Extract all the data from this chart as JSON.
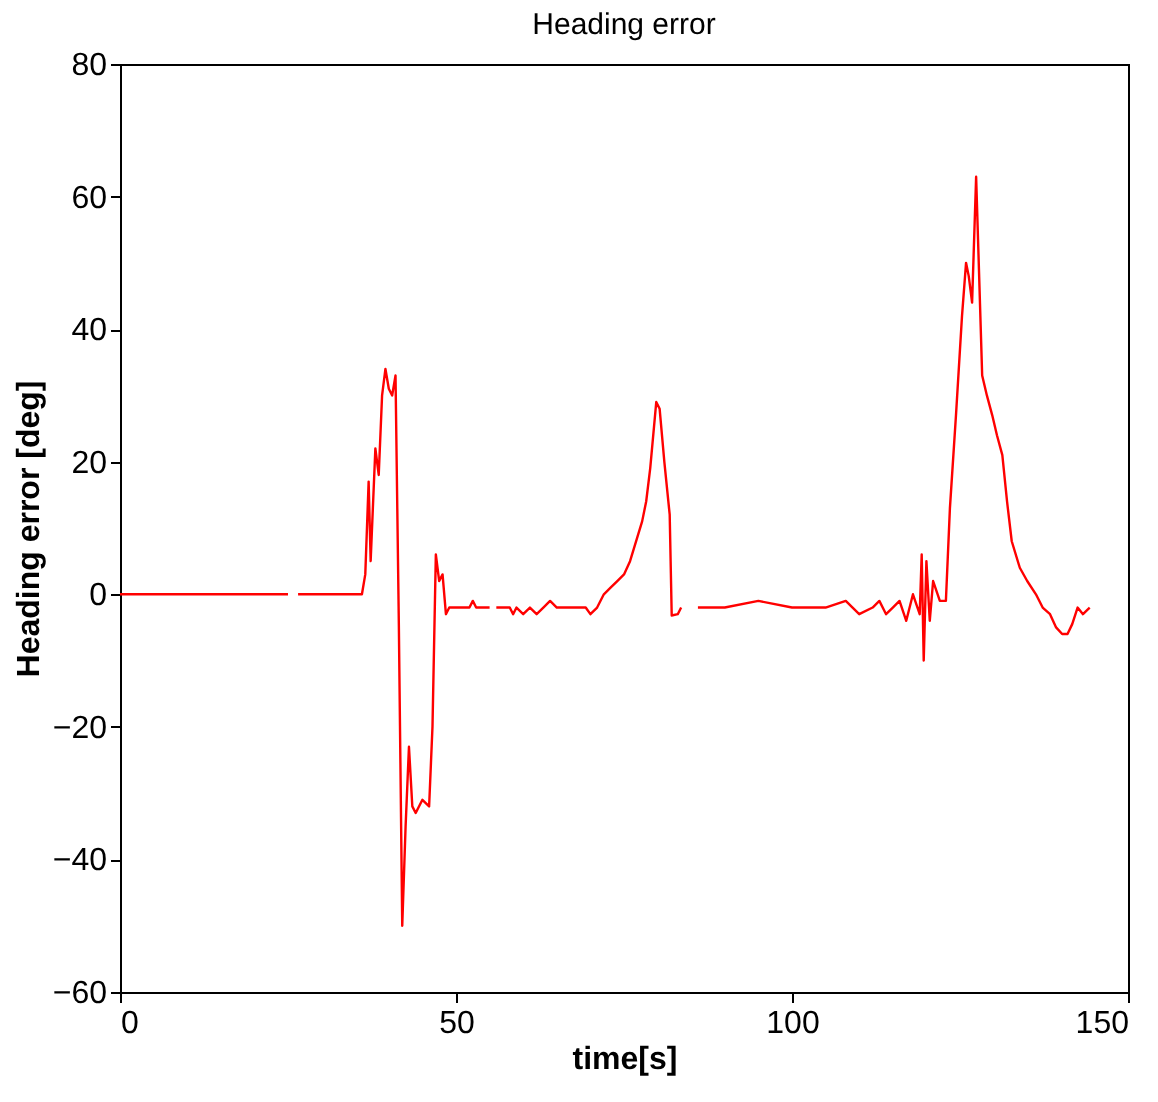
{
  "chart_data": {
    "type": "line",
    "title": "Heading error",
    "xlabel": "time[s]",
    "ylabel": "Heading error [deg]",
    "xlim": [
      0,
      150
    ],
    "xticks": [
      0,
      50,
      100,
      150
    ],
    "ylim": [
      -60,
      80
    ],
    "yticks": [
      -60,
      -40,
      -20,
      0,
      20,
      40,
      60,
      80
    ],
    "grid": false,
    "line_style": "solid",
    "series": [
      {
        "color": "#ff0000",
        "x": [
          0,
          25,
          25.5,
          26.5,
          36,
          36.5,
          37,
          37.3,
          38,
          38.5,
          39,
          39.5,
          40,
          40.5,
          41,
          41.5,
          42,
          42.5,
          43,
          43.5,
          44,
          45,
          46,
          46.5,
          47,
          47.5,
          48,
          48.5,
          49,
          52,
          52.5,
          53,
          53.5,
          54,
          55,
          55.5,
          56,
          58,
          58.5,
          59,
          60,
          61,
          62,
          63,
          64,
          65,
          66,
          68,
          69.3,
          70,
          71,
          72,
          73,
          74,
          75,
          75.9,
          76.5,
          77.7,
          78.3,
          78.9,
          79.8,
          80.3,
          81,
          81.8,
          82.1,
          83,
          83.5,
          84,
          86,
          90,
          95,
          100,
          105,
          108,
          110,
          112,
          113,
          114,
          115,
          116,
          117,
          118,
          119,
          119.3,
          119.6,
          120,
          120.5,
          121,
          122,
          122.9,
          123.5,
          124.4,
          125.3,
          125.9,
          126.3,
          126.8,
          127.4,
          128.3,
          129,
          129.8,
          130.5,
          131.3,
          132,
          132.7,
          133.9,
          135,
          136.3,
          137.3,
          138.4,
          139.3,
          140.2,
          141,
          141.7,
          142.5,
          143.3,
          144.3
        ],
        "values": [
          0,
          0,
          null,
          0,
          0,
          3,
          17,
          5,
          22,
          18,
          30,
          34,
          31,
          30,
          33,
          -5,
          -50,
          -35,
          -23,
          -32,
          -33,
          -31,
          -32,
          -20,
          6,
          2,
          3,
          -3,
          -2,
          -2,
          -1,
          -2,
          -2,
          -2,
          -2,
          null,
          -2,
          -2,
          -3,
          -2,
          -3,
          -2,
          -3,
          -2,
          -1,
          -2,
          -2,
          -2,
          -2,
          -3,
          -2,
          0,
          1,
          2,
          3,
          5,
          7,
          11,
          14,
          19,
          29,
          28,
          20,
          12,
          -3.2,
          -3,
          -2,
          null,
          -2,
          -2,
          -1,
          -2,
          -2,
          -1,
          -3,
          -2,
          -1,
          -3,
          -2,
          -1,
          -4,
          0,
          -3,
          6,
          -10,
          5,
          -4,
          2,
          -1,
          -1,
          13,
          27,
          42,
          50,
          48,
          44,
          63,
          33,
          30,
          27,
          24,
          21,
          14,
          8,
          4,
          2,
          0,
          -2,
          -3,
          -5,
          -6,
          -6,
          -4.5,
          -2,
          -3,
          -2
        ]
      }
    ]
  }
}
